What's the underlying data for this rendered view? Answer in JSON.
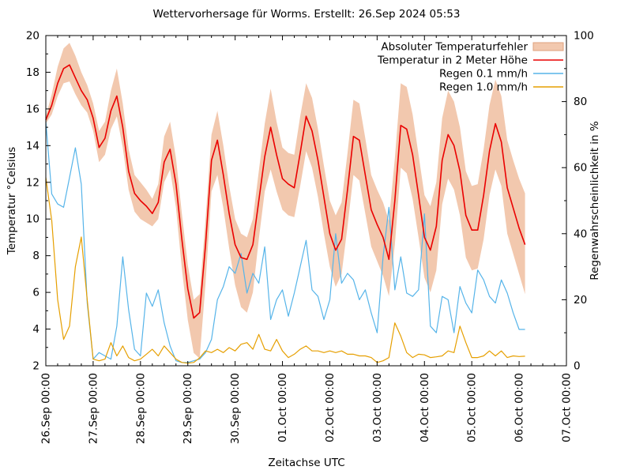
{
  "title": "Wettervorhersage für Worms. Erstellt: 26.Sep 2024 05:53",
  "chart_data": {
    "type": "line",
    "title": "Wettervorhersage für Worms. Erstellt: 26.Sep 2024 05:53",
    "xlabel": "Zeitachse UTC",
    "ylabel_left": "Temperatur °Celsius",
    "ylabel_right": "Regenwahrscheinlichkeit in %",
    "grid": false,
    "x_axis": {
      "days_total": 11,
      "minor_tick_hours": 6,
      "tick_labels": [
        "26.Sep 00:00",
        "27.Sep 00:00",
        "28.Sep 00:00",
        "29.Sep 00:00",
        "30.Sep 00:00",
        "01.Oct 00:00",
        "02.Oct 00:00",
        "03.Oct 00:00",
        "04.Oct 00:00",
        "05.Oct 00:00",
        "06.Oct 00:00",
        "07.Oct 00:00"
      ]
    },
    "y_left": {
      "min": 2,
      "max": 20,
      "step": 2,
      "minor_step": 1
    },
    "y_right": {
      "min": 0,
      "max": 100,
      "step": 20,
      "minor_step": 10
    },
    "colors": {
      "band_fill": "#f2c8ae",
      "band_edge": "#dfa27e",
      "temperature": "#ea0000",
      "rain_0_1": "#56b4e9",
      "rain_1_0": "#e69f00"
    },
    "legend": {
      "position": "top-right-inside",
      "entries": [
        {
          "label": "Absoluter Temperaturfehler",
          "type": "band",
          "color_key": "band_fill"
        },
        {
          "label": "Temperatur in 2 Meter Höhe",
          "type": "line",
          "color_key": "temperature"
        },
        {
          "label": "Regen 0.1 mm/h",
          "type": "line",
          "color_key": "rain_0_1"
        },
        {
          "label": "Regen 1.0 mm/h",
          "type": "line",
          "color_key": "rain_1_0"
        }
      ]
    },
    "series_hours_start": 0,
    "series_hours_step": 3,
    "series": {
      "temperature_2m_c": [
        15.4,
        16.2,
        17.4,
        18.2,
        18.4,
        17.7,
        17.0,
        16.5,
        15.5,
        13.9,
        14.4,
        15.9,
        16.7,
        15.0,
        12.6,
        11.4,
        11.0,
        10.7,
        10.3,
        10.9,
        13.1,
        13.8,
        11.9,
        8.9,
        6.2,
        4.6,
        4.9,
        8.6,
        13.2,
        14.3,
        12.4,
        10.3,
        8.6,
        7.9,
        7.8,
        8.6,
        11.0,
        13.4,
        15.0,
        13.5,
        12.2,
        11.9,
        11.7,
        13.6,
        15.6,
        14.8,
        13.2,
        11.2,
        9.2,
        8.3,
        8.9,
        11.6,
        14.5,
        14.3,
        12.4,
        10.5,
        9.7,
        9.0,
        7.8,
        11.0,
        15.1,
        14.9,
        13.5,
        11.3,
        9.0,
        8.3,
        9.6,
        13.2,
        14.6,
        14.0,
        12.6,
        10.2,
        9.4,
        9.4,
        11.3,
        13.7,
        15.2,
        14.2,
        11.7,
        10.6,
        9.5,
        8.6
      ],
      "temp_error_upper_c": [
        15.6,
        16.8,
        18.3,
        19.3,
        19.6,
        18.9,
        18.0,
        17.3,
        16.3,
        14.8,
        15.3,
        17.0,
        18.2,
        16.3,
        13.8,
        12.4,
        12.0,
        11.6,
        11.1,
        11.9,
        14.5,
        15.3,
        13.3,
        10.3,
        7.5,
        5.6,
        5.9,
        10.0,
        14.6,
        15.9,
        14.0,
        11.8,
        10.0,
        9.2,
        9.0,
        10.0,
        12.6,
        15.2,
        17.1,
        15.3,
        13.9,
        13.6,
        13.5,
        15.6,
        17.4,
        16.6,
        14.9,
        12.9,
        11.0,
        10.2,
        10.9,
        13.6,
        16.5,
        16.3,
        14.4,
        12.4,
        11.6,
        10.9,
        9.9,
        13.3,
        17.4,
        17.2,
        15.7,
        13.5,
        11.3,
        10.7,
        12.0,
        15.5,
        17.0,
        16.4,
        15.0,
        12.6,
        11.8,
        11.9,
        13.8,
        16.2,
        17.6,
        16.7,
        14.3,
        13.2,
        12.2,
        11.4
      ],
      "temp_error_lower_c": [
        15.2,
        15.7,
        16.7,
        17.4,
        17.5,
        16.8,
        16.2,
        15.8,
        14.8,
        13.1,
        13.5,
        14.9,
        15.6,
        13.9,
        11.6,
        10.4,
        10.0,
        9.8,
        9.6,
        10.0,
        12.0,
        12.7,
        10.6,
        7.3,
        4.5,
        2.7,
        2.4,
        6.5,
        11.5,
        12.4,
        10.6,
        8.4,
        6.4,
        5.2,
        4.9,
        6.0,
        8.9,
        11.5,
        12.7,
        11.5,
        10.5,
        10.2,
        10.1,
        11.8,
        13.7,
        12.8,
        11.2,
        9.2,
        7.4,
        6.3,
        7.0,
        9.6,
        12.4,
        12.1,
        10.3,
        8.5,
        7.7,
        6.9,
        5.8,
        8.6,
        12.8,
        12.5,
        11.1,
        9.0,
        6.8,
        6.0,
        7.2,
        10.8,
        12.2,
        11.6,
        10.2,
        7.9,
        7.2,
        7.3,
        8.9,
        11.3,
        12.7,
        11.8,
        9.2,
        8.1,
        7.0,
        5.9
      ],
      "rain_0_1mm_pct": [
        74,
        52,
        49,
        48,
        57,
        66,
        55,
        19,
        2,
        4,
        3,
        2,
        12,
        33,
        17,
        5,
        3,
        22,
        18,
        23,
        13,
        6,
        1.5,
        1,
        1,
        1.5,
        2,
        4,
        8,
        20,
        24,
        30,
        28,
        34,
        22,
        28,
        25,
        36,
        14,
        20,
        23,
        15,
        22,
        30,
        38,
        23,
        21,
        14,
        20,
        40,
        25,
        28,
        26,
        20,
        23,
        16,
        10,
        33,
        48,
        23,
        33,
        22,
        21,
        23,
        46,
        12,
        10,
        21,
        20,
        10,
        24,
        19,
        16,
        29,
        26,
        21,
        19,
        26,
        22,
        16,
        11,
        11
      ],
      "rain_1_0mm_pct": [
        57,
        44,
        20,
        8,
        12,
        30,
        39,
        20,
        2,
        1.5,
        2,
        7,
        3,
        6,
        2.5,
        1.5,
        2,
        3.5,
        5,
        3,
        6,
        4,
        2,
        1,
        0.8,
        1,
        2.4,
        4.5,
        4,
        5,
        4,
        5.5,
        4.5,
        6.5,
        7,
        5,
        9.5,
        5,
        4.5,
        8,
        4.5,
        2.5,
        3.5,
        5,
        6,
        4.5,
        4.5,
        4,
        4.5,
        4,
        4.5,
        3.5,
        3.5,
        3,
        3,
        2.5,
        1,
        1.5,
        2.5,
        13,
        9,
        4,
        2.5,
        3.5,
        3.3,
        2.5,
        2.7,
        3,
        4.5,
        4,
        12,
        7,
        2.5,
        2.5,
        3,
        4.5,
        3,
        4.5,
        2.5,
        3,
        2.8,
        2.9
      ]
    }
  }
}
